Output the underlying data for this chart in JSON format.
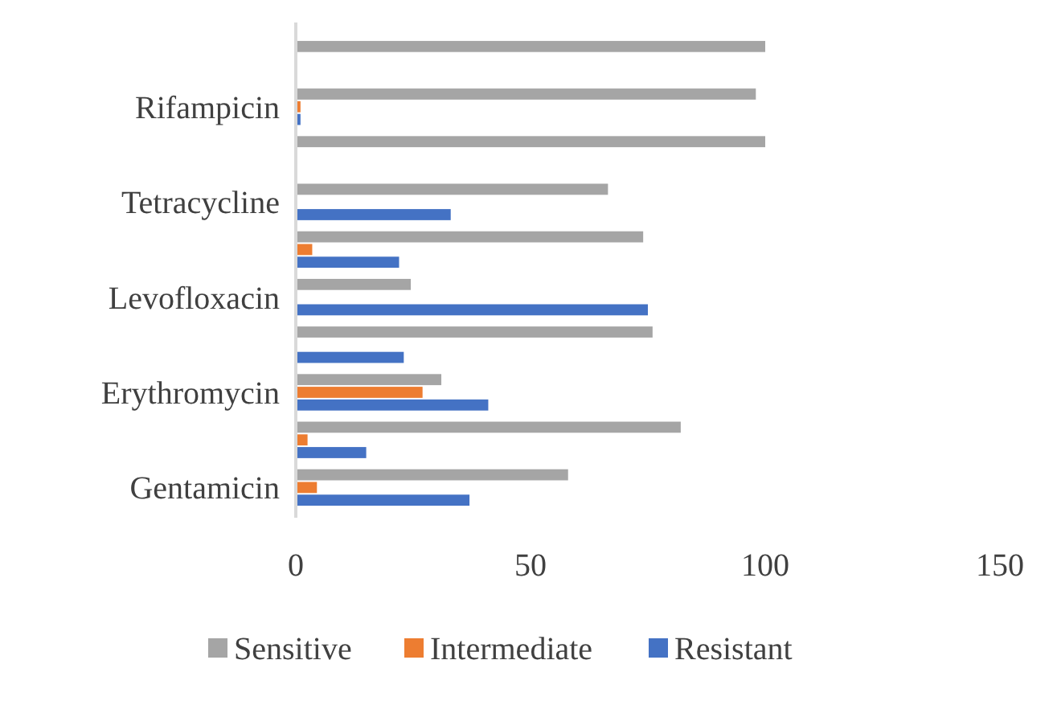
{
  "chart_data": {
    "type": "bar",
    "orientation": "horizontal",
    "categories": [
      null,
      "Rifampicin",
      null,
      "Tetracycline",
      null,
      "Levofloxacin",
      null,
      "Erythromycin",
      null,
      "Gentamicin"
    ],
    "series": [
      {
        "name": "Sensitive",
        "color": "#a5a5a5",
        "values": [
          100,
          98,
          100,
          66.5,
          74,
          24.5,
          76,
          31,
          82,
          58
        ]
      },
      {
        "name": "Intermediate",
        "color": "#ed7d31",
        "values": [
          0,
          1,
          0,
          0,
          3.5,
          0,
          0,
          27,
          2.5,
          4.5
        ]
      },
      {
        "name": "Resistant",
        "color": "#4472c4",
        "values": [
          0,
          1,
          0,
          33,
          22,
          75,
          23,
          41,
          15,
          37
        ]
      }
    ],
    "xlim": [
      0,
      150
    ],
    "xticks": [
      0,
      50,
      100,
      150
    ],
    "grid": false,
    "legend": "bottom"
  }
}
